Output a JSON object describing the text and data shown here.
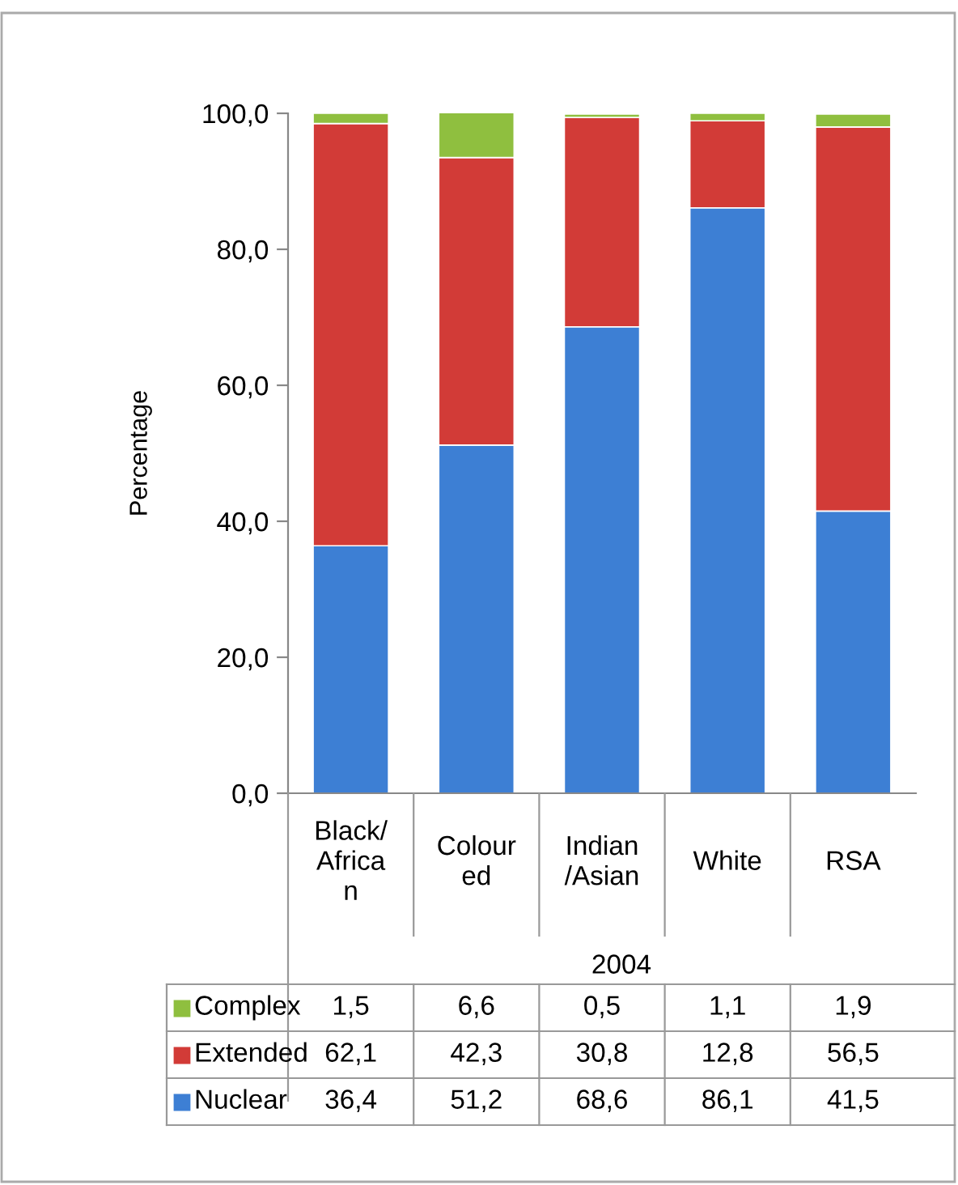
{
  "chart_data": {
    "type": "bar",
    "stacked": true,
    "ylabel": "Percentage",
    "xlabel": "2004",
    "categories": [
      "Black/African",
      "Coloured",
      "Indian/Asian",
      "White",
      "RSA"
    ],
    "series": [
      {
        "name": "Nuclear",
        "color": "#3d7fd4",
        "values": [
          36.4,
          51.2,
          68.6,
          86.1,
          41.5
        ],
        "value_labels": [
          "36,4",
          "51,2",
          "68,6",
          "86,1",
          "41,5"
        ]
      },
      {
        "name": "Extended",
        "color": "#d23b37",
        "values": [
          62.1,
          42.3,
          30.8,
          12.8,
          56.5
        ],
        "value_labels": [
          "62,1",
          "42,3",
          "30,8",
          "12,8",
          "56,5"
        ]
      },
      {
        "name": "Complex",
        "color": "#8fbf3f",
        "values": [
          1.5,
          6.6,
          0.5,
          1.1,
          1.9
        ],
        "value_labels": [
          "1,5",
          "6,6",
          "0,5",
          "1,1",
          "1,9"
        ]
      }
    ],
    "ylim": [
      0,
      100
    ],
    "yticks": [
      {
        "value": 0,
        "label": "0,0"
      },
      {
        "value": 20,
        "label": "20,0"
      },
      {
        "value": 40,
        "label": "40,0"
      },
      {
        "value": 60,
        "label": "60,0"
      },
      {
        "value": 80,
        "label": "80,0"
      },
      {
        "value": 100,
        "label": "100,0"
      }
    ],
    "grid": false,
    "legend": "bottom left"
  }
}
